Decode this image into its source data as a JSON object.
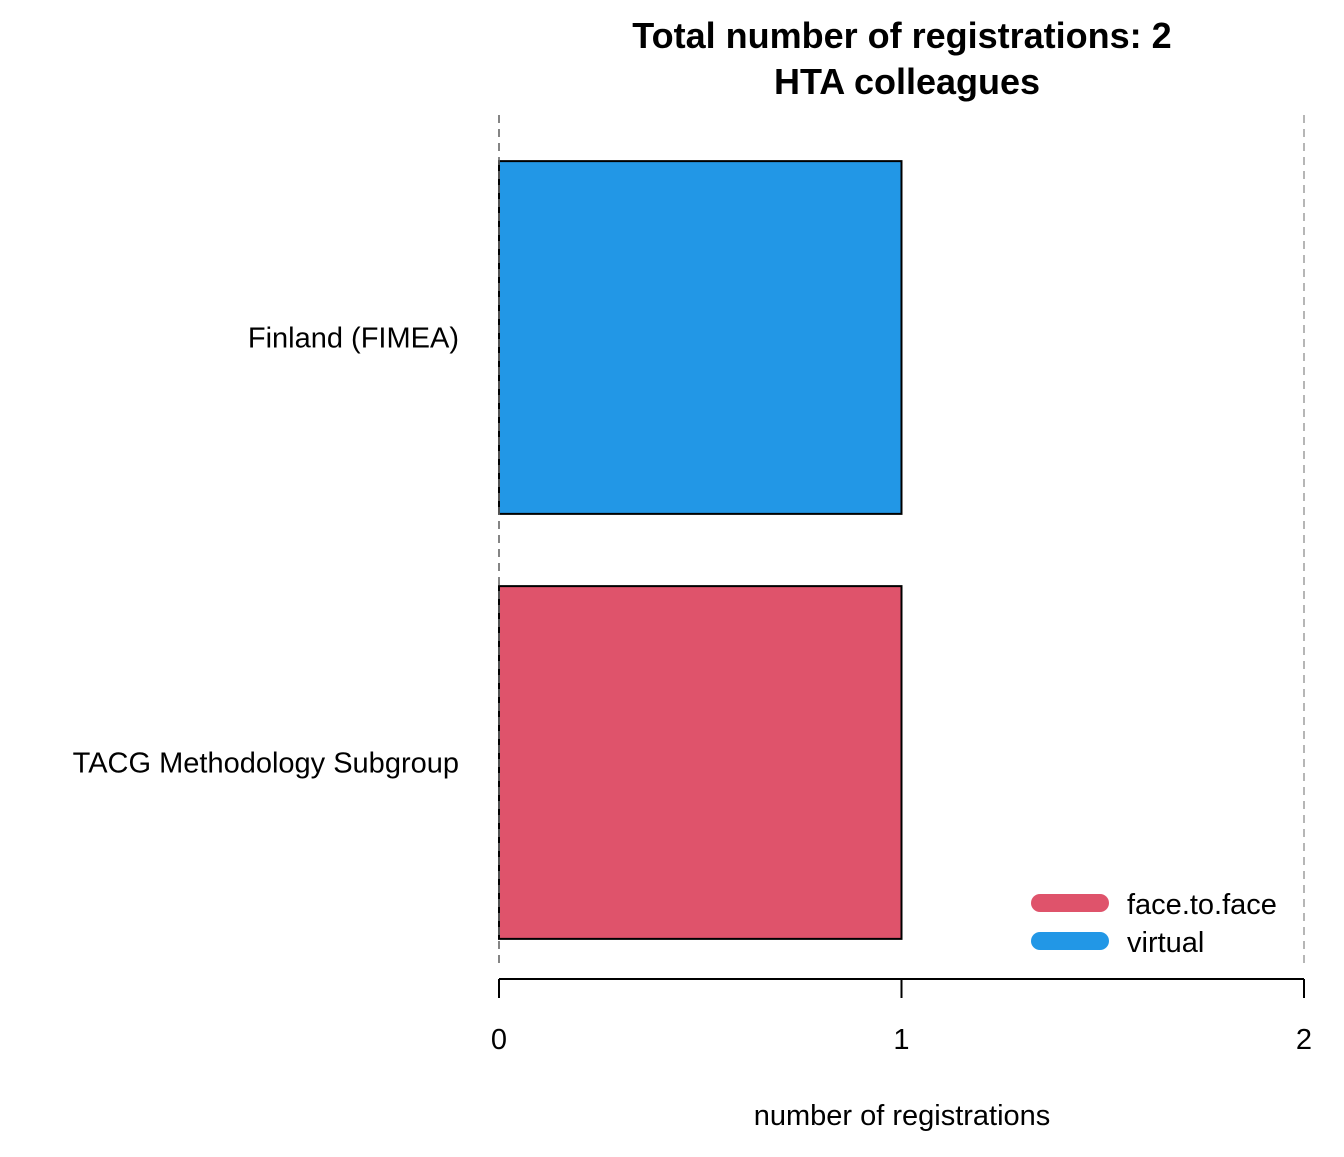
{
  "chart_data": {
    "type": "bar",
    "orientation": "horizontal",
    "title": "Total number of registrations: 2",
    "subtitle": "HTA colleagues",
    "xlabel": "number of registrations",
    "ylabel": "",
    "xlim": [
      0,
      2
    ],
    "x_ticks": [
      "0",
      "1",
      "2"
    ],
    "grid": "dashed vertical lines at x = 0 and x = 2",
    "legend_position": "bottom-right",
    "categories": [
      "Finland (FIMEA)",
      "TACG Methodology Subgroup"
    ],
    "series": [
      {
        "name": "face.to.face",
        "color": "#DF536B",
        "values": [
          0,
          1
        ]
      },
      {
        "name": "virtual",
        "color": "#2297E6",
        "values": [
          1,
          0
        ]
      }
    ],
    "bar_outline_color": "#000000",
    "grid_color": "#9E9E9E"
  }
}
